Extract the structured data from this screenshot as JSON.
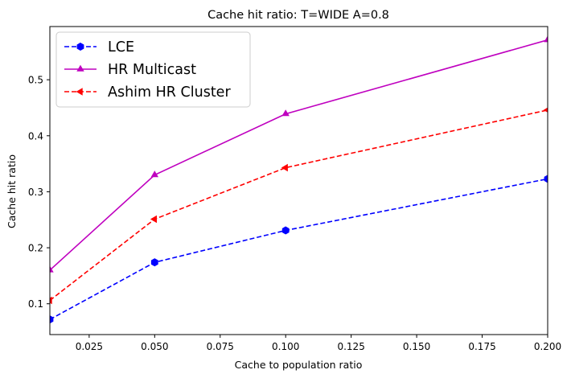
{
  "chart_data": {
    "type": "line",
    "title": "Cache hit ratio: T=WIDE A=0.8",
    "xlabel": "Cache to population ratio",
    "ylabel": "Cache hit ratio",
    "xlim": [
      0.01,
      0.2
    ],
    "ylim": [
      0.045,
      0.595
    ],
    "xticks": [
      0.025,
      0.05,
      0.075,
      0.1,
      0.125,
      0.15,
      0.175,
      0.2
    ],
    "xtick_labels": [
      "0.025",
      "0.050",
      "0.075",
      "0.100",
      "0.125",
      "0.150",
      "0.175",
      "0.200"
    ],
    "yticks": [
      0.1,
      0.2,
      0.3,
      0.4,
      0.5
    ],
    "ytick_labels": [
      "0.1",
      "0.2",
      "0.3",
      "0.4",
      "0.5"
    ],
    "grid": false,
    "legend_position": "top-left",
    "series": [
      {
        "name": "LCE",
        "color": "#0000ff",
        "dash": "dashed",
        "marker": "hexagon",
        "x": [
          0.01,
          0.05,
          0.1,
          0.2
        ],
        "y": [
          0.072,
          0.174,
          0.231,
          0.323
        ]
      },
      {
        "name": "HR Multicast",
        "color": "#bf00bf",
        "dash": "solid",
        "marker": "triangle-up",
        "x": [
          0.01,
          0.05,
          0.1,
          0.2
        ],
        "y": [
          0.16,
          0.33,
          0.439,
          0.571
        ]
      },
      {
        "name": "Ashim HR Cluster",
        "color": "#ff0000",
        "dash": "dashed",
        "marker": "triangle-left",
        "x": [
          0.01,
          0.05,
          0.1,
          0.2
        ],
        "y": [
          0.106,
          0.251,
          0.343,
          0.446
        ]
      }
    ]
  }
}
